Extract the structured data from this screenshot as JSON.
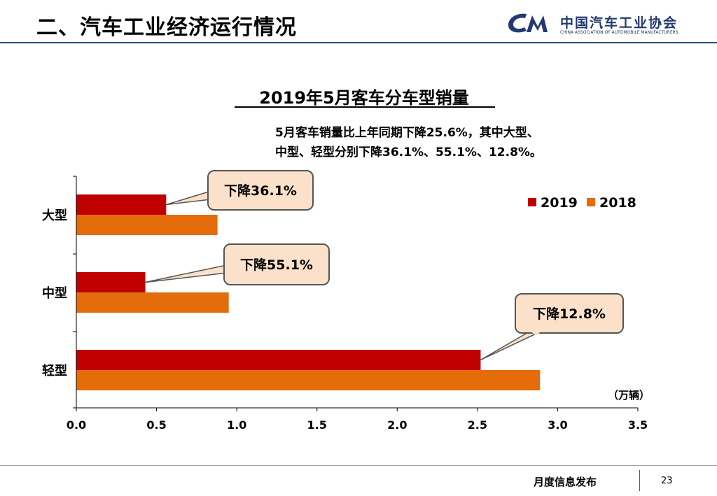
{
  "header": {
    "title": "二、汽车工业经济运行情况",
    "logo_name": "中国汽车工业协会",
    "logo_subtitle": "CHINA ASSOCIATION OF AUTOMOBILE MANUFACTURERS",
    "brand_color": "#23396e"
  },
  "summary": {
    "line1": "5月客车销量比上年同期下降25.6%，其中大型、",
    "line2": "中型、轻型分别下降36.1%、55.1%、12.8%。"
  },
  "chart_data": {
    "type": "bar",
    "orientation": "horizontal",
    "title": "2019年5月客车分车型销量",
    "categories": [
      "大型",
      "中型",
      "轻型"
    ],
    "series": [
      {
        "name": "2019",
        "color": "#c00000",
        "values": [
          0.56,
          0.43,
          2.52
        ]
      },
      {
        "name": "2018",
        "color": "#e46c0a",
        "values": [
          0.88,
          0.95,
          2.89
        ]
      }
    ],
    "unit_label": "（万辆）",
    "xlim": [
      0,
      3.5
    ],
    "xticks": [
      "0.0",
      "0.5",
      "1.0",
      "1.5",
      "2.0",
      "2.5",
      "3.0",
      "3.5"
    ],
    "legend_position": "top-right",
    "grid": false,
    "callouts": [
      "下降36.1%",
      "下降55.1%",
      "下降12.8%"
    ]
  },
  "footer": {
    "label": "月度信息发布",
    "page_number": "23"
  }
}
